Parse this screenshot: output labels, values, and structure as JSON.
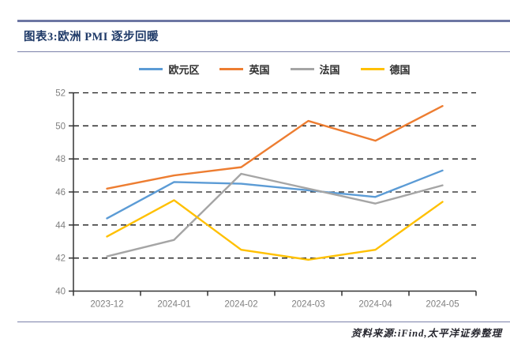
{
  "header": {
    "title": "图表3:欧洲 PMI 逐步回暖"
  },
  "footer": {
    "source": "资料来源:iFind,太平洋证券整理"
  },
  "style_colors": {
    "title_navy": "#1f3a68",
    "rule_purple_gray": "#7b81aa",
    "axis_black": "#333333",
    "tick_label_gray": "#7f7f7f",
    "gridline_black": "#1a1a1a"
  },
  "chart_data": {
    "type": "line",
    "title": "欧洲 PMI 逐步回暖",
    "categories": [
      "2023-12",
      "2024-01",
      "2024-02",
      "2024-03",
      "2024-04",
      "2024-05"
    ],
    "series": [
      {
        "name": "欧元区",
        "color": "#5B9BD5",
        "values": [
          44.4,
          46.6,
          46.5,
          46.1,
          45.7,
          47.3
        ]
      },
      {
        "name": "英国",
        "color": "#ED7D31",
        "values": [
          46.2,
          47.0,
          47.5,
          50.3,
          49.1,
          51.2
        ]
      },
      {
        "name": "法国",
        "color": "#A5A5A5",
        "values": [
          42.1,
          43.1,
          47.1,
          46.2,
          45.3,
          46.4
        ]
      },
      {
        "name": "德国",
        "color": "#FFC000",
        "values": [
          43.3,
          45.5,
          42.5,
          41.9,
          42.5,
          45.4
        ]
      }
    ],
    "xlabel": "",
    "ylabel": "",
    "ylim": [
      40,
      52
    ],
    "yticks": [
      40,
      42,
      44,
      46,
      48,
      50,
      52
    ],
    "grid": "horizontal dashed",
    "legend_position": "top center"
  }
}
